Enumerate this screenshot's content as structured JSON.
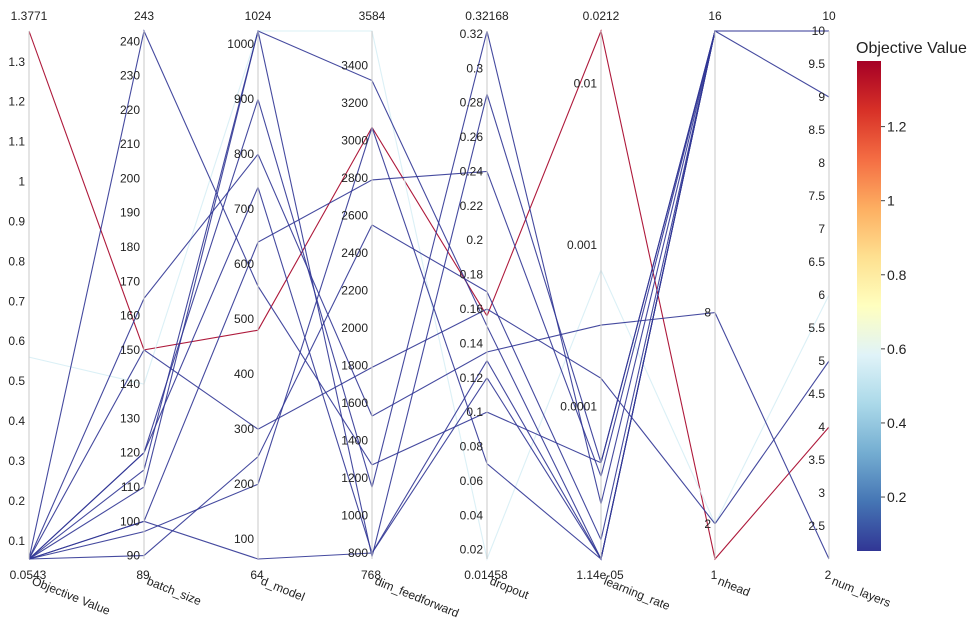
{
  "chart_data": {
    "type": "parallel_coordinates",
    "title": "",
    "axes": [
      {
        "name": "Objective Value",
        "scale": "linear",
        "min": 0.0543,
        "max": 1.3771,
        "min_label": "0.0543",
        "max_label": "1.3771",
        "ticks": [
          0.1,
          0.2,
          0.3,
          0.4,
          0.5,
          0.6,
          0.7,
          0.8,
          0.9,
          1,
          1.1,
          1.2,
          1.3
        ],
        "tick_labels": [
          "0.1",
          "0.2",
          "0.3",
          "0.4",
          "0.5",
          "0.6",
          "0.7",
          "0.8",
          "0.9",
          "1",
          "1.1",
          "1.2",
          "1.3"
        ]
      },
      {
        "name": "batch_size",
        "scale": "linear",
        "min": 89,
        "max": 243,
        "min_label": "89",
        "max_label": "243",
        "ticks": [
          90,
          100,
          110,
          120,
          130,
          140,
          150,
          160,
          170,
          180,
          190,
          200,
          210,
          220,
          230,
          240
        ],
        "tick_labels": [
          "90",
          "100",
          "110",
          "120",
          "130",
          "140",
          "150",
          "160",
          "170",
          "180",
          "190",
          "200",
          "210",
          "220",
          "230",
          "240"
        ]
      },
      {
        "name": "d_model",
        "scale": "linear",
        "min": 64,
        "max": 1024,
        "min_label": "64",
        "max_label": "1024",
        "ticks": [
          100,
          200,
          300,
          400,
          500,
          600,
          700,
          800,
          900,
          1000
        ],
        "tick_labels": [
          "100",
          "200",
          "300",
          "400",
          "500",
          "600",
          "700",
          "800",
          "900",
          "1000"
        ]
      },
      {
        "name": "dim_feedforward",
        "scale": "linear",
        "min": 768,
        "max": 3584,
        "min_label": "768",
        "max_label": "3584",
        "ticks": [
          800,
          1000,
          1200,
          1400,
          1600,
          1800,
          2000,
          2200,
          2400,
          2600,
          2800,
          3000,
          3200,
          3400
        ],
        "tick_labels": [
          "800",
          "1000",
          "1200",
          "1400",
          "1600",
          "1800",
          "2000",
          "2200",
          "2400",
          "2600",
          "2800",
          "3000",
          "3200",
          "3400"
        ]
      },
      {
        "name": "dropout",
        "scale": "linear",
        "min": 0.01458,
        "max": 0.32168,
        "min_label": "0.01458",
        "max_label": "0.32168",
        "ticks": [
          0.02,
          0.04,
          0.06,
          0.08,
          0.1,
          0.12,
          0.14,
          0.16,
          0.18,
          0.2,
          0.22,
          0.24,
          0.26,
          0.28,
          0.3,
          0.32
        ],
        "tick_labels": [
          "0.02",
          "0.04",
          "0.06",
          "0.08",
          "0.1",
          "0.12",
          "0.14",
          "0.16",
          "0.18",
          "0.2",
          "0.22",
          "0.24",
          "0.26",
          "0.28",
          "0.3",
          "0.32"
        ]
      },
      {
        "name": "learning_rate",
        "scale": "log",
        "min": 1.14e-05,
        "max": 0.0212,
        "min_label": "1.14e-05",
        "max_label": "0.0212",
        "ticks": [
          0.0001,
          0.001,
          0.01
        ],
        "tick_labels": [
          "0.0001",
          "0.001",
          "0.01"
        ]
      },
      {
        "name": "nhead",
        "scale": "linear",
        "min": 1,
        "max": 16,
        "min_label": "1",
        "max_label": "16",
        "ticks": [
          2,
          8
        ],
        "tick_labels": [
          "2",
          "8"
        ]
      },
      {
        "name": "num_layers",
        "scale": "linear",
        "min": 2,
        "max": 10,
        "min_label": "2",
        "max_label": "10",
        "ticks": [
          2.5,
          3,
          3.5,
          4,
          4.5,
          5,
          5.5,
          6,
          6.5,
          7,
          7.5,
          8,
          8.5,
          9,
          9.5,
          10
        ],
        "tick_labels": [
          "2.5",
          "3",
          "3.5",
          "4",
          "4.5",
          "5",
          "5.5",
          "6",
          "6.5",
          "7",
          "7.5",
          "8",
          "8.5",
          "9",
          "9.5",
          "10"
        ]
      }
    ],
    "trials": [
      [
        1.3771,
        150,
        480,
        3070,
        0.156,
        0.0212,
        1,
        4
      ],
      [
        0.56,
        140,
        1024,
        3584,
        0.01458,
        0.0007,
        2,
        6
      ],
      [
        0.0543,
        150,
        300,
        1790,
        0.16,
        0.00015,
        2,
        5
      ],
      [
        0.0543,
        165,
        800,
        1530,
        0.135,
        0.00032,
        8,
        2
      ],
      [
        0.0543,
        243,
        560,
        1270,
        0.1,
        4.5e-05,
        16,
        10
      ],
      [
        0.0543,
        120,
        900,
        1150,
        0.3216,
        2.5e-05,
        16,
        10
      ],
      [
        0.0543,
        110,
        1024,
        780,
        0.285,
        4.5e-05,
        16,
        9
      ],
      [
        0.0543,
        100,
        640,
        2790,
        0.24,
        3.7e-05,
        16,
        10
      ],
      [
        0.0543,
        90,
        250,
        2550,
        0.17,
        1.5e-05,
        16,
        10
      ],
      [
        0.0543,
        97,
        200,
        3070,
        0.07,
        1.14e-05,
        16,
        10
      ],
      [
        0.0543,
        115,
        1024,
        3320,
        0.15,
        1.14e-05,
        16,
        10
      ],
      [
        0.0543,
        120,
        740,
        800,
        0.12,
        1.14e-05,
        16,
        10
      ],
      [
        0.0543,
        100,
        64,
        800,
        0.13,
        1.14e-05,
        16,
        10
      ]
    ],
    "colorbar": {
      "title": "Objective Value",
      "min": 0.0543,
      "max": 1.3771,
      "ticks": [
        0.2,
        0.4,
        0.6,
        0.8,
        1,
        1.2
      ],
      "tick_labels": [
        "0.2",
        "0.4",
        "0.6",
        "0.8",
        "1",
        "1.2"
      ],
      "colorscale": [
        "#313695",
        "#4575b4",
        "#74add1",
        "#abd9e9",
        "#e0f3f8",
        "#ffffbf",
        "#fee090",
        "#fdae61",
        "#f46d43",
        "#d73027",
        "#a50026"
      ]
    }
  }
}
